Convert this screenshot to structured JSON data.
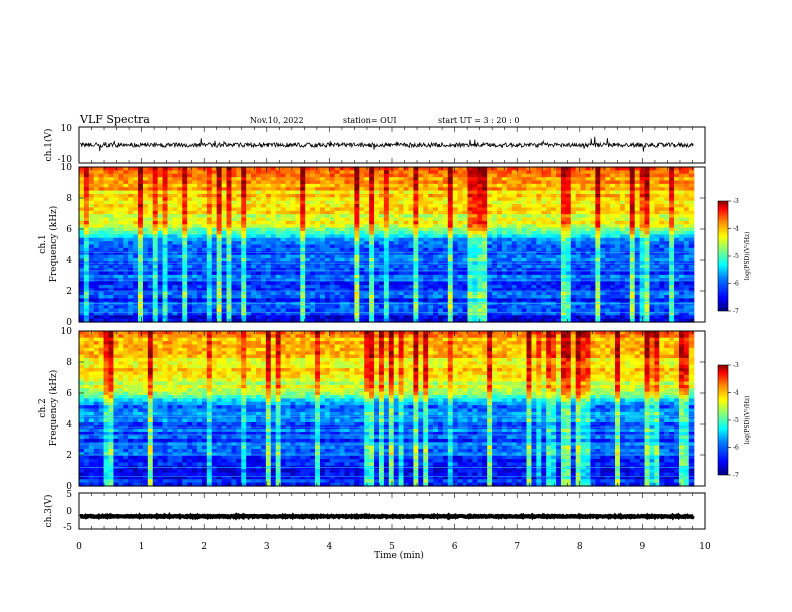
{
  "header": {
    "title": "VLF Spectra",
    "date": "Nov.10, 2022",
    "station": "station= OUI",
    "start": "start  UT  =   3  : 20 : 0"
  },
  "chart_data": [
    {
      "type": "line",
      "name": "ch1-waveform",
      "ylabel": "ch.1(V)",
      "ylim": [
        -10,
        10
      ],
      "ytick_labels": [
        "10",
        "-10"
      ],
      "xlim": [
        0,
        10
      ],
      "signal": {
        "mean": 0,
        "noise_amplitude": 1.2,
        "spike_amplitude": 4,
        "end": 9.82
      }
    },
    {
      "type": "heatmap",
      "name": "ch1-spectrogram",
      "ylabel": "ch.1\nFrequency  (kHz)",
      "ylim": [
        0,
        10
      ],
      "yticks": [
        0,
        2,
        4,
        6,
        8,
        10
      ],
      "xlim": [
        0,
        10
      ],
      "data_end": 9.82,
      "colorbar": {
        "label": "log(PSD)(V²/Hz)",
        "range": [
          -7,
          -3
        ],
        "ticks": [
          "-3",
          "-4",
          "-5",
          "-6",
          "-7"
        ]
      }
    },
    {
      "type": "heatmap",
      "name": "ch2-spectrogram",
      "ylabel": "ch.2\nFrequency  (kHz)",
      "ylim": [
        0,
        10
      ],
      "yticks": [
        0,
        2,
        4,
        6,
        8,
        10
      ],
      "xlim": [
        0,
        10
      ],
      "data_end": 9.82,
      "colorbar": {
        "label": "log(PSD)(V²/Hz)",
        "range": [
          -7,
          -3
        ],
        "ticks": [
          "-3",
          "-4",
          "-5",
          "-6",
          "-7"
        ]
      }
    },
    {
      "type": "line",
      "name": "ch3-waveform",
      "ylabel": "ch.3(V)",
      "ylim": [
        -5,
        5
      ],
      "ytick_labels": [
        "5",
        "0",
        "-5"
      ],
      "xlim": [
        0,
        10
      ],
      "signal": {
        "mean": -1.5,
        "noise_amplitude": 0.15,
        "spike_amplitude": 0,
        "end": 9.82
      }
    }
  ],
  "xaxis": {
    "label": "Time  (min)",
    "ticks": [
      "0",
      "1",
      "2",
      "3",
      "4",
      "5",
      "6",
      "7",
      "8",
      "9",
      "10"
    ],
    "range": [
      0,
      10
    ]
  },
  "colormap": [
    "#00007f",
    "#0000ff",
    "#0080ff",
    "#00ffff",
    "#80ff80",
    "#ffff00",
    "#ff8000",
    "#ff0000",
    "#7f0000"
  ]
}
